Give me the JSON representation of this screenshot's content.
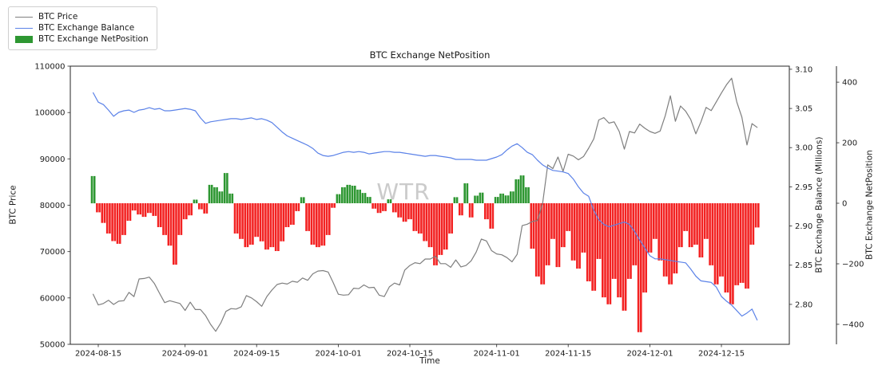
{
  "figure": {
    "watermark": "WTR",
    "background": "#ffffff"
  },
  "legend": {
    "items": [
      {
        "label": "BTC Price",
        "type": "line",
        "color": "#7f7f7f"
      },
      {
        "label": "BTC Exchange Balance",
        "type": "line",
        "color": "#5b82e8"
      },
      {
        "label": "BTC Exchange NetPosition",
        "type": "patch",
        "color": "#2e9732"
      }
    ]
  },
  "chart_data": {
    "type": "mixed-line-bar",
    "title": "BTC Exchange NetPosition",
    "xlabel": "Time",
    "start_date": "2024-08-14",
    "end_date": "2024-12-22",
    "frequency": "daily",
    "x_tick_labels": [
      "2024-08-15",
      "2024-09-01",
      "2024-09-15",
      "2024-10-01",
      "2024-10-15",
      "2024-11-01",
      "2024-11-15",
      "2024-12-01",
      "2024-12-15"
    ],
    "axes": {
      "left": {
        "label": "BTC Price",
        "range": [
          50000,
          110000
        ],
        "tick_values": [
          50000,
          60000,
          70000,
          80000,
          90000,
          100000,
          110000
        ],
        "tick_labels": [
          "50000",
          "60000",
          "70000",
          "80000",
          "90000",
          "100000",
          "110000"
        ]
      },
      "right_balance": {
        "label": "BTC Exchange Balance (Millions)",
        "range": [
          2.749,
          3.104
        ],
        "tick_values": [
          2.8,
          2.85,
          2.9,
          2.95,
          3.0,
          3.05,
          3.1
        ],
        "tick_labels": [
          "2.80",
          "2.85",
          "2.90",
          "2.95",
          "3.00",
          "3.05",
          "3.10"
        ]
      },
      "right_netposition": {
        "label": "BTC Exchange NetPosition",
        "range": [
          -466,
          453
        ],
        "tick_values": [
          400,
          200,
          0,
          -200,
          -400
        ],
        "tick_labels": [
          "400",
          "200",
          "0",
          "−200",
          "−400"
        ]
      }
    },
    "series": [
      {
        "name": "BTC Price",
        "axis": "left",
        "type": "line",
        "color": "#7f7f7f",
        "values": [
          60800,
          58500,
          58800,
          59500,
          58600,
          59300,
          59400,
          61200,
          60300,
          64100,
          64200,
          64500,
          63100,
          61000,
          59000,
          59400,
          59100,
          58800,
          57300,
          59100,
          57500,
          57500,
          56200,
          54300,
          52800,
          54600,
          57100,
          57700,
          57600,
          58100,
          60500,
          60000,
          59200,
          58200,
          60300,
          61700,
          62900,
          63200,
          63000,
          63600,
          63400,
          64300,
          63800,
          65200,
          65800,
          65900,
          65600,
          63300,
          60800,
          60600,
          60700,
          62100,
          62000,
          62800,
          62200,
          62300,
          60600,
          60300,
          62400,
          63200,
          62800,
          66000,
          67000,
          67600,
          67400,
          68400,
          68400,
          69000,
          67400,
          67400,
          66600,
          68200,
          66700,
          67000,
          68000,
          69900,
          72700,
          72300,
          70200,
          69500,
          69300,
          68700,
          67800,
          69400,
          75600,
          75900,
          76500,
          76700,
          80400,
          88700,
          87900,
          90400,
          87300,
          91000,
          90600,
          89800,
          90500,
          92300,
          94300,
          98400,
          98900,
          97700,
          98000,
          95900,
          92100,
          95900,
          95600,
          97500,
          96600,
          95900,
          95500,
          96000,
          99300,
          103600,
          98100,
          101400,
          100300,
          98500,
          95400,
          98000,
          101100,
          100400,
          102300,
          104200,
          106000,
          107400,
          102300,
          99000,
          93000,
          97600,
          96800
        ]
      },
      {
        "name": "BTC Exchange Balance",
        "axis": "right_balance",
        "type": "line",
        "color": "#5b82e8",
        "values": [
          3.07,
          3.058,
          3.055,
          3.048,
          3.04,
          3.045,
          3.047,
          3.048,
          3.045,
          3.048,
          3.049,
          3.051,
          3.049,
          3.05,
          3.047,
          3.047,
          3.048,
          3.049,
          3.05,
          3.049,
          3.047,
          3.038,
          3.031,
          3.033,
          3.034,
          3.035,
          3.036,
          3.037,
          3.037,
          3.036,
          3.037,
          3.038,
          3.036,
          3.037,
          3.035,
          3.032,
          3.026,
          3.02,
          3.015,
          3.012,
          3.009,
          3.006,
          3.003,
          2.999,
          2.993,
          2.99,
          2.989,
          2.99,
          2.992,
          2.994,
          2.995,
          2.994,
          2.995,
          2.994,
          2.992,
          2.993,
          2.994,
          2.995,
          2.995,
          2.994,
          2.994,
          2.993,
          2.992,
          2.991,
          2.99,
          2.989,
          2.99,
          2.99,
          2.989,
          2.988,
          2.987,
          2.985,
          2.985,
          2.985,
          2.985,
          2.984,
          2.984,
          2.984,
          2.986,
          2.988,
          2.991,
          2.997,
          3.002,
          3.005,
          3.0,
          2.994,
          2.991,
          2.984,
          2.978,
          2.974,
          2.971,
          2.97,
          2.969,
          2.967,
          2.96,
          2.95,
          2.942,
          2.938,
          2.92,
          2.908,
          2.902,
          2.899,
          2.901,
          2.903,
          2.905,
          2.902,
          2.893,
          2.882,
          2.872,
          2.862,
          2.858,
          2.858,
          2.857,
          2.856,
          2.855,
          2.854,
          2.853,
          2.845,
          2.836,
          2.83,
          2.829,
          2.828,
          2.822,
          2.81,
          2.804,
          2.799,
          2.792,
          2.785,
          2.789,
          2.794,
          2.78
        ]
      },
      {
        "name": "BTC Exchange NetPosition",
        "axis": "right_netposition",
        "type": "bar",
        "color_positive": "#2e9732",
        "color_negative": "#f32222",
        "values": [
          90,
          -30,
          -65,
          -100,
          -125,
          -134,
          -105,
          -58,
          -24,
          -37,
          -45,
          -32,
          -42,
          -79,
          -105,
          -140,
          -203,
          -105,
          -53,
          -40,
          12,
          -20,
          -34,
          61,
          53,
          39,
          100,
          32,
          -100,
          -118,
          -145,
          -137,
          -111,
          -126,
          -153,
          -145,
          -158,
          -126,
          -79,
          -71,
          -26,
          20,
          -92,
          -137,
          -145,
          -140,
          -105,
          -15,
          30,
          53,
          61,
          58,
          45,
          34,
          21,
          -18,
          -32,
          -26,
          13,
          -30,
          -47,
          -61,
          -53,
          -92,
          -100,
          -125,
          -145,
          -205,
          -171,
          -153,
          -100,
          20,
          -40,
          66,
          -47,
          25,
          35,
          -53,
          -84,
          21,
          32,
          26,
          39,
          79,
          92,
          53,
          -150,
          -242,
          -268,
          -205,
          -118,
          -211,
          -145,
          -92,
          -189,
          -216,
          -163,
          -258,
          -289,
          -184,
          -311,
          -334,
          -250,
          -311,
          -355,
          -250,
          -205,
          -426,
          -295,
          -163,
          -118,
          -189,
          -242,
          -268,
          -232,
          -145,
          -92,
          -145,
          -137,
          -179,
          -118,
          -205,
          -268,
          -242,
          -295,
          -334,
          -271,
          -263,
          -282,
          -137,
          -80
        ]
      }
    ]
  }
}
